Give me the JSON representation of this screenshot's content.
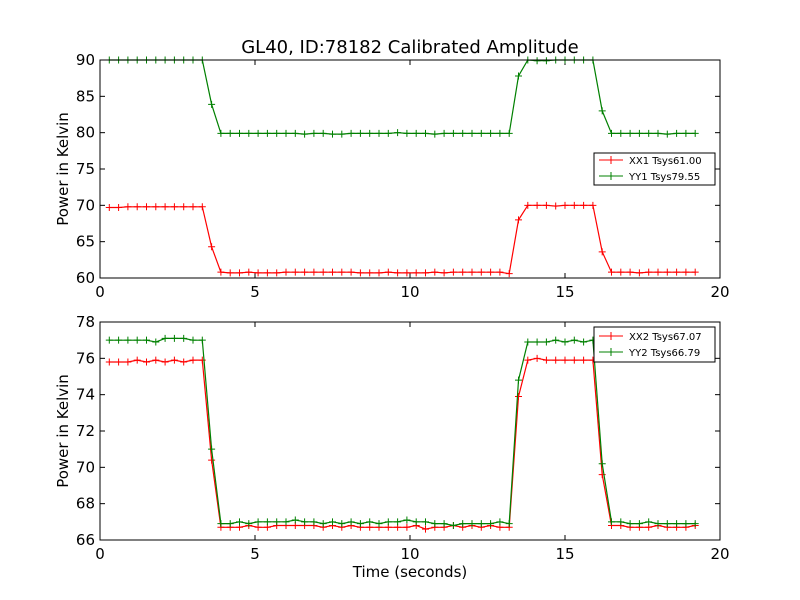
{
  "chart_data": [
    {
      "type": "line",
      "title": "GL40, ID:78182 Calibrated Amplitude",
      "xlabel": "",
      "ylabel": "Power in Kelvin",
      "xlim": [
        0,
        20
      ],
      "ylim": [
        60,
        90
      ],
      "xticks": [
        "0",
        "5",
        "10",
        "15",
        "20"
      ],
      "yticks": [
        "60",
        "65",
        "70",
        "75",
        "80",
        "85",
        "90"
      ],
      "grid": false,
      "legend_position": "right",
      "x": [
        0.3,
        0.6,
        0.9,
        1.2,
        1.5,
        1.8,
        2.1,
        2.4,
        2.7,
        3.0,
        3.3,
        3.6,
        3.9,
        4.2,
        4.5,
        4.8,
        5.1,
        5.4,
        5.7,
        6.0,
        6.3,
        6.6,
        6.9,
        7.2,
        7.5,
        7.8,
        8.1,
        8.4,
        8.7,
        9.0,
        9.3,
        9.6,
        9.9,
        10.2,
        10.5,
        10.8,
        11.1,
        11.4,
        11.7,
        12.0,
        12.3,
        12.6,
        12.9,
        13.2,
        13.5,
        13.8,
        14.1,
        14.4,
        14.7,
        15.0,
        15.3,
        15.6,
        15.9,
        16.2,
        16.5,
        16.8,
        17.1,
        17.4,
        17.7,
        18.0,
        18.3,
        18.6,
        18.9,
        19.2
      ],
      "series": [
        {
          "name": "XX1 Tsys61.00",
          "color": "#ff0000",
          "values": [
            69.7,
            69.7,
            69.8,
            69.8,
            69.8,
            69.8,
            69.8,
            69.8,
            69.8,
            69.8,
            69.8,
            64.3,
            60.8,
            60.7,
            60.7,
            60.8,
            60.7,
            60.7,
            60.7,
            60.8,
            60.8,
            60.8,
            60.8,
            60.8,
            60.8,
            60.8,
            60.8,
            60.7,
            60.7,
            60.7,
            60.8,
            60.7,
            60.7,
            60.7,
            60.7,
            60.8,
            60.7,
            60.8,
            60.8,
            60.8,
            60.8,
            60.8,
            60.8,
            60.6,
            68.0,
            70.0,
            70.0,
            70.0,
            69.9,
            70.0,
            70.0,
            70.0,
            70.0,
            63.6,
            60.8,
            60.8,
            60.8,
            60.7,
            60.8,
            60.8,
            60.8,
            60.8,
            60.8,
            60.8
          ]
        },
        {
          "name": "YY1 Tsys79.55",
          "color": "#008000",
          "values": [
            90.0,
            90.0,
            90.0,
            90.0,
            90.0,
            90.0,
            90.0,
            90.0,
            90.0,
            90.0,
            90.0,
            83.9,
            79.9,
            79.9,
            79.9,
            79.9,
            79.9,
            79.9,
            79.9,
            79.9,
            79.9,
            79.8,
            79.9,
            79.9,
            79.8,
            79.8,
            79.9,
            79.9,
            79.9,
            79.9,
            79.9,
            80.0,
            79.9,
            79.9,
            79.9,
            79.8,
            79.9,
            79.9,
            79.9,
            79.9,
            79.9,
            79.9,
            79.9,
            79.9,
            87.8,
            90.0,
            89.9,
            89.9,
            90.0,
            90.0,
            90.0,
            90.0,
            90.0,
            83.0,
            79.9,
            79.9,
            79.9,
            79.9,
            79.9,
            79.9,
            79.8,
            79.9,
            79.9,
            79.9
          ]
        }
      ]
    },
    {
      "type": "line",
      "title": "",
      "xlabel": "Time (seconds)",
      "ylabel": "Power in Kelvin",
      "xlim": [
        0,
        20
      ],
      "ylim": [
        66,
        78
      ],
      "xticks": [
        "0",
        "5",
        "10",
        "15",
        "20"
      ],
      "yticks": [
        "66",
        "68",
        "70",
        "72",
        "74",
        "76",
        "78"
      ],
      "grid": false,
      "legend_position": "top-right",
      "x": [
        0.3,
        0.6,
        0.9,
        1.2,
        1.5,
        1.8,
        2.1,
        2.4,
        2.7,
        3.0,
        3.3,
        3.6,
        3.9,
        4.2,
        4.5,
        4.8,
        5.1,
        5.4,
        5.7,
        6.0,
        6.3,
        6.6,
        6.9,
        7.2,
        7.5,
        7.8,
        8.1,
        8.4,
        8.7,
        9.0,
        9.3,
        9.6,
        9.9,
        10.2,
        10.5,
        10.8,
        11.1,
        11.4,
        11.7,
        12.0,
        12.3,
        12.6,
        12.9,
        13.2,
        13.5,
        13.8,
        14.1,
        14.4,
        14.7,
        15.0,
        15.3,
        15.6,
        15.9,
        16.2,
        16.5,
        16.8,
        17.1,
        17.4,
        17.7,
        18.0,
        18.3,
        18.6,
        18.9,
        19.2
      ],
      "series": [
        {
          "name": "XX2 Tsys67.07",
          "color": "#ff0000",
          "values": [
            75.8,
            75.8,
            75.8,
            75.9,
            75.8,
            75.9,
            75.8,
            75.9,
            75.8,
            75.9,
            75.9,
            70.4,
            66.7,
            66.7,
            66.7,
            66.8,
            66.7,
            66.7,
            66.8,
            66.8,
            66.8,
            66.8,
            66.8,
            66.7,
            66.8,
            66.7,
            66.8,
            66.7,
            66.7,
            66.7,
            66.7,
            66.7,
            66.7,
            66.8,
            66.6,
            66.7,
            66.7,
            66.8,
            66.7,
            66.8,
            66.7,
            66.8,
            66.7,
            66.7,
            73.9,
            75.9,
            76.0,
            75.9,
            75.9,
            75.9,
            75.9,
            75.9,
            75.9,
            69.6,
            66.8,
            66.8,
            66.7,
            66.7,
            66.7,
            66.8,
            66.7,
            66.7,
            66.7,
            66.8
          ]
        },
        {
          "name": "YY2 Tsys66.79",
          "color": "#008000",
          "values": [
            77.0,
            77.0,
            77.0,
            77.0,
            77.0,
            76.9,
            77.1,
            77.1,
            77.1,
            77.0,
            77.0,
            71.0,
            66.9,
            66.9,
            67.0,
            66.9,
            67.0,
            67.0,
            67.0,
            67.0,
            67.1,
            67.0,
            67.0,
            66.9,
            67.0,
            66.9,
            67.0,
            66.9,
            67.0,
            66.9,
            67.0,
            67.0,
            67.1,
            67.0,
            67.0,
            66.9,
            66.9,
            66.8,
            66.9,
            66.9,
            66.9,
            66.9,
            67.0,
            66.9,
            74.8,
            76.9,
            76.9,
            76.9,
            77.0,
            76.9,
            77.0,
            76.9,
            77.0,
            70.2,
            67.0,
            67.0,
            66.9,
            66.9,
            67.0,
            66.9,
            66.9,
            66.9,
            66.9,
            66.9
          ]
        }
      ]
    }
  ]
}
